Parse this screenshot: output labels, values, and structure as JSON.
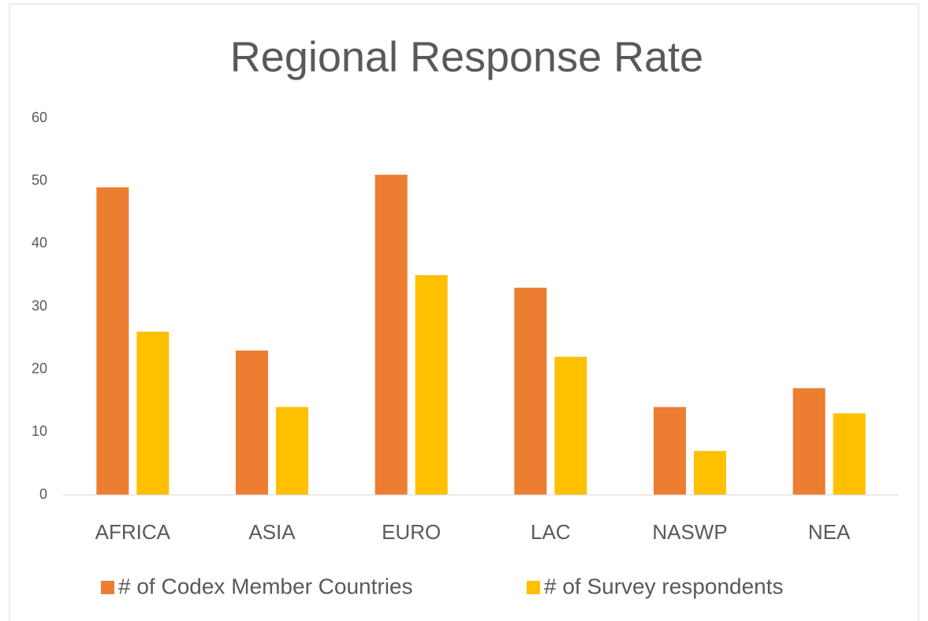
{
  "chart_data": {
    "type": "bar",
    "title": "Regional Response Rate",
    "categories": [
      "AFRICA",
      "ASIA",
      "EURO",
      "LAC",
      "NASWP",
      "NEA"
    ],
    "series": [
      {
        "name": "# of Codex Member Countries",
        "color": "#ED7D31",
        "values": [
          49,
          23,
          51,
          33,
          14,
          17
        ]
      },
      {
        "name": "# of Survey respondents",
        "color": "#FFC000",
        "values": [
          26,
          14,
          35,
          22,
          7,
          13
        ]
      }
    ],
    "ylim": [
      0,
      60
    ],
    "yticks": [
      0,
      10,
      20,
      30,
      40,
      50,
      60
    ],
    "grid": false,
    "legend": "bottom"
  }
}
